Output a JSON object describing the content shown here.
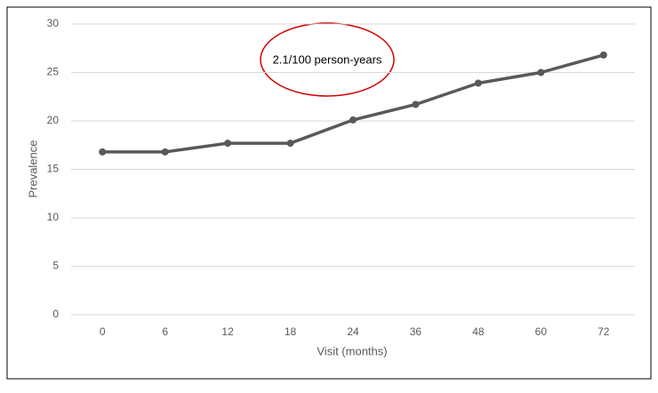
{
  "chart_data": {
    "type": "line",
    "annotation": "2.1/100 person-years",
    "x_label": "Visit (months)",
    "y_label": "Prevalence",
    "categories": [
      "0",
      "6",
      "12",
      "18",
      "24",
      "36",
      "48",
      "60",
      "72"
    ],
    "series": [
      {
        "color": "#595959",
        "values": [
          16.8,
          16.8,
          17.7,
          17.7,
          20.1,
          21.7,
          23.9,
          25.0,
          26.8
        ]
      }
    ],
    "ylim": [
      0,
      30
    ],
    "yticks": [
      0,
      5,
      10,
      15,
      20,
      25,
      30
    ],
    "grid": true
  }
}
